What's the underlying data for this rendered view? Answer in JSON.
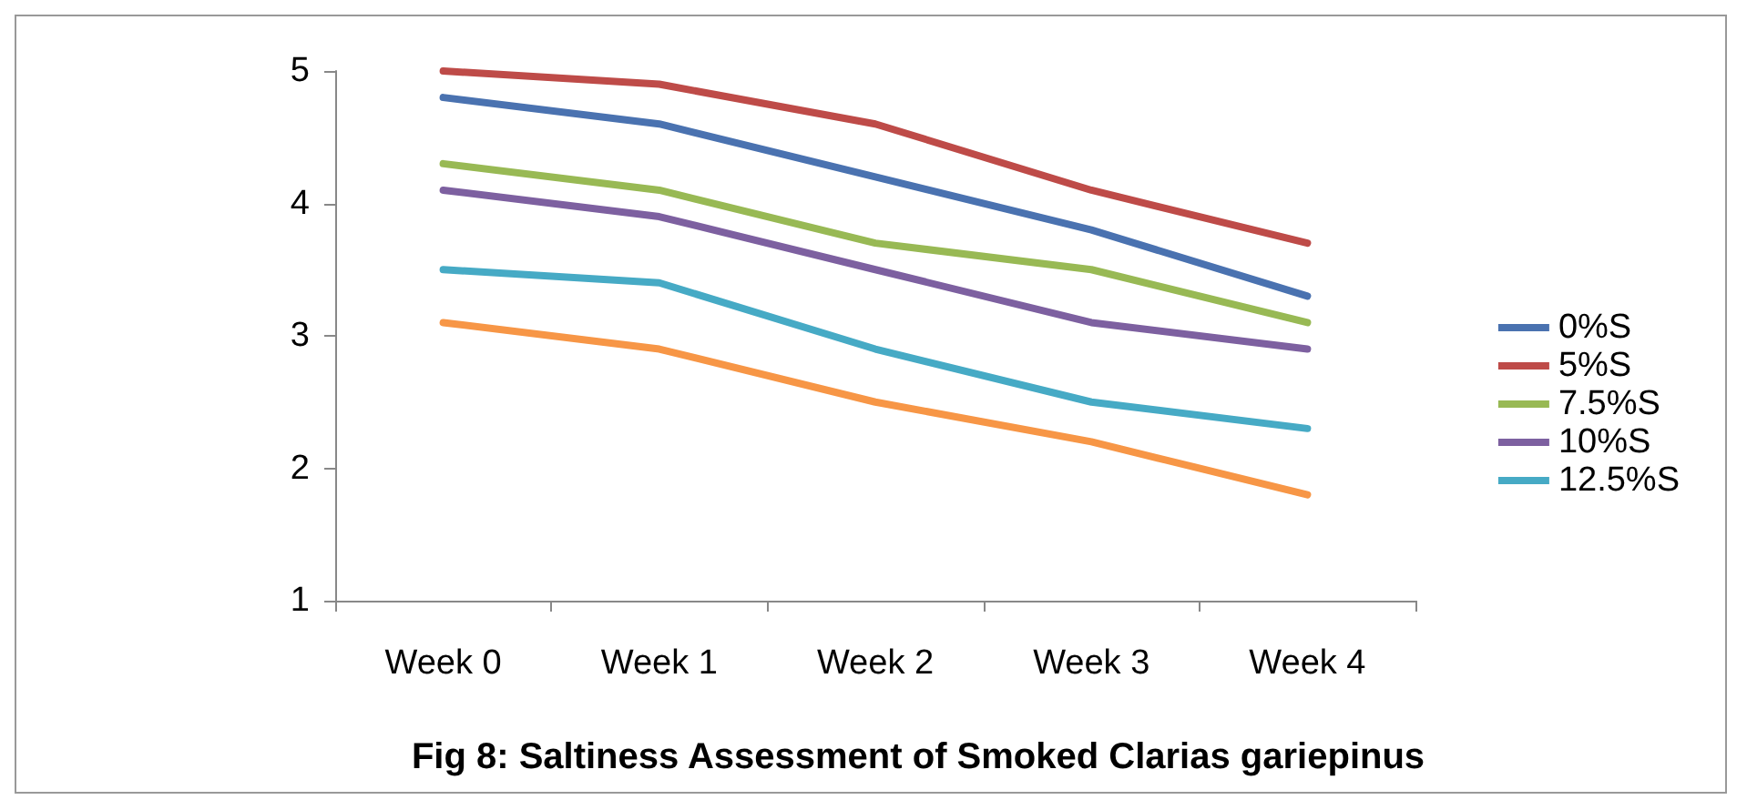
{
  "chart_data": {
    "type": "line",
    "title": "Fig 8: Saltiness Assessment of Smoked Clarias gariepinus",
    "categories": [
      "Week 0",
      "Week 1",
      "Week 2",
      "Week 3",
      "Week 4"
    ],
    "series": [
      {
        "name": "0%S",
        "color": "#4a72b0",
        "values": [
          4.8,
          4.6,
          4.2,
          3.8,
          3.3
        ]
      },
      {
        "name": "5%S",
        "color": "#be4b48",
        "values": [
          5.0,
          4.9,
          4.6,
          4.1,
          3.7
        ]
      },
      {
        "name": "7.5%S",
        "color": "#98b954",
        "values": [
          4.3,
          4.1,
          3.7,
          3.5,
          3.1
        ]
      },
      {
        "name": "10%S",
        "color": "#7d60a0",
        "values": [
          4.1,
          3.9,
          3.5,
          3.1,
          2.9
        ]
      },
      {
        "name": "12.5%S",
        "color": "#46aac5",
        "values": [
          3.5,
          3.4,
          2.9,
          2.5,
          2.3
        ]
      },
      {
        "color": "#f79646",
        "values": [
          3.1,
          2.9,
          2.5,
          2.2,
          1.8
        ]
      }
    ],
    "ylim": [
      1,
      5
    ],
    "yticks": [
      1,
      2,
      3,
      4,
      5
    ],
    "grid": false,
    "legend": "right",
    "marker": "none",
    "line_style": "solid"
  }
}
